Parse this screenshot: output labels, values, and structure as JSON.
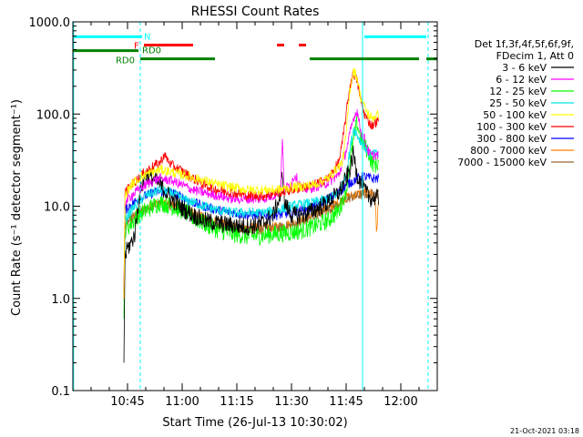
{
  "chart_data": {
    "type": "line",
    "title": "RHESSI Count Rates",
    "xlabel": "Start Time (26-Jul-13 10:30:02)",
    "ylabel": "Count Rate (s⁻¹ detector segment⁻¹)",
    "footer": "21-Oct-2021 03:18",
    "x_unit": "minutes since 10:30:02",
    "xlim": [
      0,
      100
    ],
    "ylim": [
      0.1,
      1000
    ],
    "yscale": "log",
    "grid": false,
    "legend_position": "right",
    "legend_header": [
      "Det 1f,3f,4f,5f,6f,9f,",
      "FDecim 1, Att 0"
    ],
    "x_ticks": [
      {
        "value": 15,
        "label": "10:45"
      },
      {
        "value": 30,
        "label": "11:00"
      },
      {
        "value": 45,
        "label": "11:15"
      },
      {
        "value": 60,
        "label": "11:30"
      },
      {
        "value": 75,
        "label": "11:45"
      },
      {
        "value": 90,
        "label": "12:00"
      }
    ],
    "y_ticks": [
      {
        "value": 0.1,
        "label": "0.1"
      },
      {
        "value": 1,
        "label": "1.0"
      },
      {
        "value": 10,
        "label": "10.0"
      },
      {
        "value": 100,
        "label": "100.0"
      },
      {
        "value": 1000,
        "label": "1000.0"
      }
    ],
    "vertical_lines": [
      {
        "x": 0.2,
        "style": "solid",
        "color": "#00ffff"
      },
      {
        "x": 18.5,
        "style": "dashed",
        "color": "#00ffff"
      },
      {
        "x": 79.5,
        "style": "solid",
        "color": "#00ffff"
      },
      {
        "x": 97.5,
        "style": "dashed",
        "color": "#00ffff"
      }
    ],
    "flag_bars": [
      {
        "label": "N",
        "color": "#00ffff",
        "y": 690,
        "segments": [
          [
            0,
            19
          ],
          [
            80,
            97
          ]
        ]
      },
      {
        "label": "F",
        "color": "#ff0000",
        "y": 560,
        "segments": [
          [
            19.5,
            33
          ],
          [
            56,
            58
          ],
          [
            62,
            64
          ]
        ]
      },
      {
        "label": "RD0",
        "color": "#008000",
        "y": 465,
        "segments": [
          [
            0,
            39
          ],
          [
            65,
            95
          ],
          [
            97,
            100
          ]
        ]
      }
    ],
    "flag_bars_note": "RD0 bar drawn in two tiers",
    "series": [
      {
        "name": "3 - 6 keV",
        "color": "#000000",
        "x": [
          14,
          14.3,
          15,
          16,
          17,
          18,
          19,
          20,
          22,
          24,
          27,
          30,
          33,
          36,
          40,
          44,
          48,
          52,
          55,
          57,
          57.5,
          58,
          60,
          63,
          66,
          70,
          73,
          75,
          76,
          77,
          78,
          79,
          80,
          81,
          82,
          83,
          84
        ],
        "y": [
          0.2,
          2.8,
          3.5,
          4,
          5,
          11,
          17,
          22,
          20,
          17,
          12,
          9.5,
          8,
          7,
          6.5,
          6.2,
          6,
          6.5,
          8,
          13,
          25,
          11,
          8,
          8,
          9,
          11,
          14,
          20,
          25,
          37,
          22,
          18,
          15,
          13,
          12,
          12.5,
          12
        ]
      },
      {
        "name": "6 - 12 keV",
        "color": "#ff00ff",
        "x": [
          14,
          14.3,
          16,
          18,
          20,
          22,
          24,
          27,
          30,
          33,
          36,
          40,
          44,
          48,
          52,
          55,
          57,
          57.5,
          58,
          60,
          61,
          63,
          66,
          70,
          73,
          75,
          76,
          77,
          78,
          79,
          80,
          81,
          82,
          83,
          84
        ],
        "y": [
          1,
          11,
          13,
          15,
          17,
          19,
          20,
          19,
          17,
          15,
          14,
          13,
          12,
          12,
          12,
          13,
          15,
          55,
          15,
          18,
          22,
          15,
          16,
          18,
          22,
          40,
          60,
          90,
          110,
          65,
          55,
          40,
          35,
          36,
          35
        ]
      },
      {
        "name": "12 - 25 keV",
        "color": "#00ff00",
        "x": [
          14,
          14.3,
          16,
          18,
          20,
          22,
          24,
          27,
          30,
          33,
          36,
          40,
          44,
          48,
          52,
          56,
          60,
          63,
          66,
          70,
          73,
          75,
          76,
          77,
          78,
          79,
          80,
          81,
          82,
          83,
          84
        ],
        "y": [
          0.6,
          5.5,
          6.5,
          8,
          9,
          10,
          11,
          10,
          9,
          7.5,
          6.5,
          5.5,
          5,
          4.7,
          4.8,
          5,
          5.2,
          5.5,
          6,
          7,
          9,
          15,
          30,
          50,
          80,
          55,
          45,
          40,
          30,
          28,
          30
        ]
      },
      {
        "name": "25 - 50 keV",
        "color": "#00e5e5",
        "x": [
          14,
          14.3,
          16,
          18,
          20,
          22,
          24,
          27,
          30,
          33,
          36,
          40,
          44,
          48,
          52,
          56,
          60,
          63,
          66,
          70,
          73,
          75,
          76,
          77,
          78,
          79,
          80,
          81,
          82,
          83,
          84
        ],
        "y": [
          1,
          7,
          9,
          11,
          13,
          14,
          15,
          14,
          12,
          11,
          10,
          9,
          8.5,
          8.5,
          8.5,
          9,
          10,
          10.5,
          11,
          12,
          14,
          22,
          40,
          70,
          60,
          50,
          45,
          38,
          36,
          37,
          36
        ]
      },
      {
        "name": "50 - 100 keV",
        "color": "#ffff00",
        "x": [
          14,
          14.3,
          16,
          18,
          20,
          24,
          30,
          36,
          40,
          48,
          56,
          60,
          66,
          70,
          74,
          75,
          76,
          77,
          78,
          79,
          80,
          81,
          82,
          83,
          84
        ],
        "y": [
          1,
          13,
          17,
          20,
          22,
          25,
          22,
          19,
          17,
          15,
          15,
          16,
          17,
          20,
          30,
          60,
          180,
          300,
          250,
          150,
          120,
          100,
          90,
          95,
          100
        ]
      },
      {
        "name": "100 - 300 keV",
        "color": "#ff0000",
        "x": [
          14,
          14.3,
          16,
          18,
          20,
          22,
          24,
          25,
          26,
          27,
          30,
          33,
          36,
          40,
          44,
          48,
          52,
          56,
          60,
          63,
          66,
          70,
          73,
          74,
          75,
          76,
          77,
          78,
          79,
          80,
          81,
          82,
          83,
          84
        ],
        "y": [
          1,
          14,
          17,
          20,
          24,
          27,
          30,
          36,
          32,
          28,
          24,
          20,
          17,
          15,
          14,
          13,
          13,
          14,
          15,
          16,
          17,
          20,
          30,
          50,
          100,
          200,
          280,
          230,
          140,
          100,
          85,
          75,
          80,
          85
        ]
      },
      {
        "name": "300 - 800 keV",
        "color": "#0000ff",
        "x": [
          14,
          14.3,
          16,
          18,
          20,
          22,
          24,
          27,
          30,
          33,
          36,
          40,
          44,
          48,
          52,
          56,
          60,
          63,
          66,
          70,
          73,
          75,
          78,
          80,
          82,
          84
        ],
        "y": [
          1,
          9,
          10.5,
          12,
          13,
          14,
          14.5,
          14,
          12.5,
          11,
          10,
          9,
          8.5,
          8,
          8,
          8,
          8.5,
          9,
          10,
          12,
          14,
          17,
          20,
          21,
          20,
          20
        ]
      },
      {
        "name": "800 - 7000 keV",
        "color": "#ff8000",
        "x": [
          14,
          14.3,
          16,
          18,
          20,
          22,
          24,
          27,
          30,
          33,
          36,
          40,
          44,
          48,
          52,
          56,
          60,
          63,
          66,
          70,
          73,
          75,
          78,
          80,
          82,
          83,
          83.3,
          84
        ],
        "y": [
          1,
          6.5,
          7.5,
          8.5,
          9.5,
          10.5,
          11,
          10.5,
          9.5,
          8.5,
          7.5,
          6.5,
          6,
          5.8,
          5.8,
          6,
          6.5,
          7,
          8,
          9.5,
          11,
          12.5,
          13.5,
          14,
          14,
          13,
          5,
          13
        ]
      },
      {
        "name": "7000 - 15000 keV",
        "color": "#996633",
        "x": [
          14,
          14.3,
          16,
          18,
          20,
          22,
          24,
          27,
          30,
          33,
          36,
          40,
          44,
          48,
          52,
          56,
          60,
          63,
          66,
          70,
          73,
          75,
          78,
          80,
          82,
          84
        ],
        "y": [
          1,
          6.2,
          7.2,
          8.2,
          9.2,
          10,
          10.5,
          10,
          9.2,
          8.2,
          7.2,
          6.2,
          5.8,
          5.6,
          5.6,
          5.8,
          6.2,
          6.8,
          7.8,
          9.2,
          10.5,
          12,
          13,
          13.5,
          13.5,
          13.5
        ]
      }
    ]
  }
}
